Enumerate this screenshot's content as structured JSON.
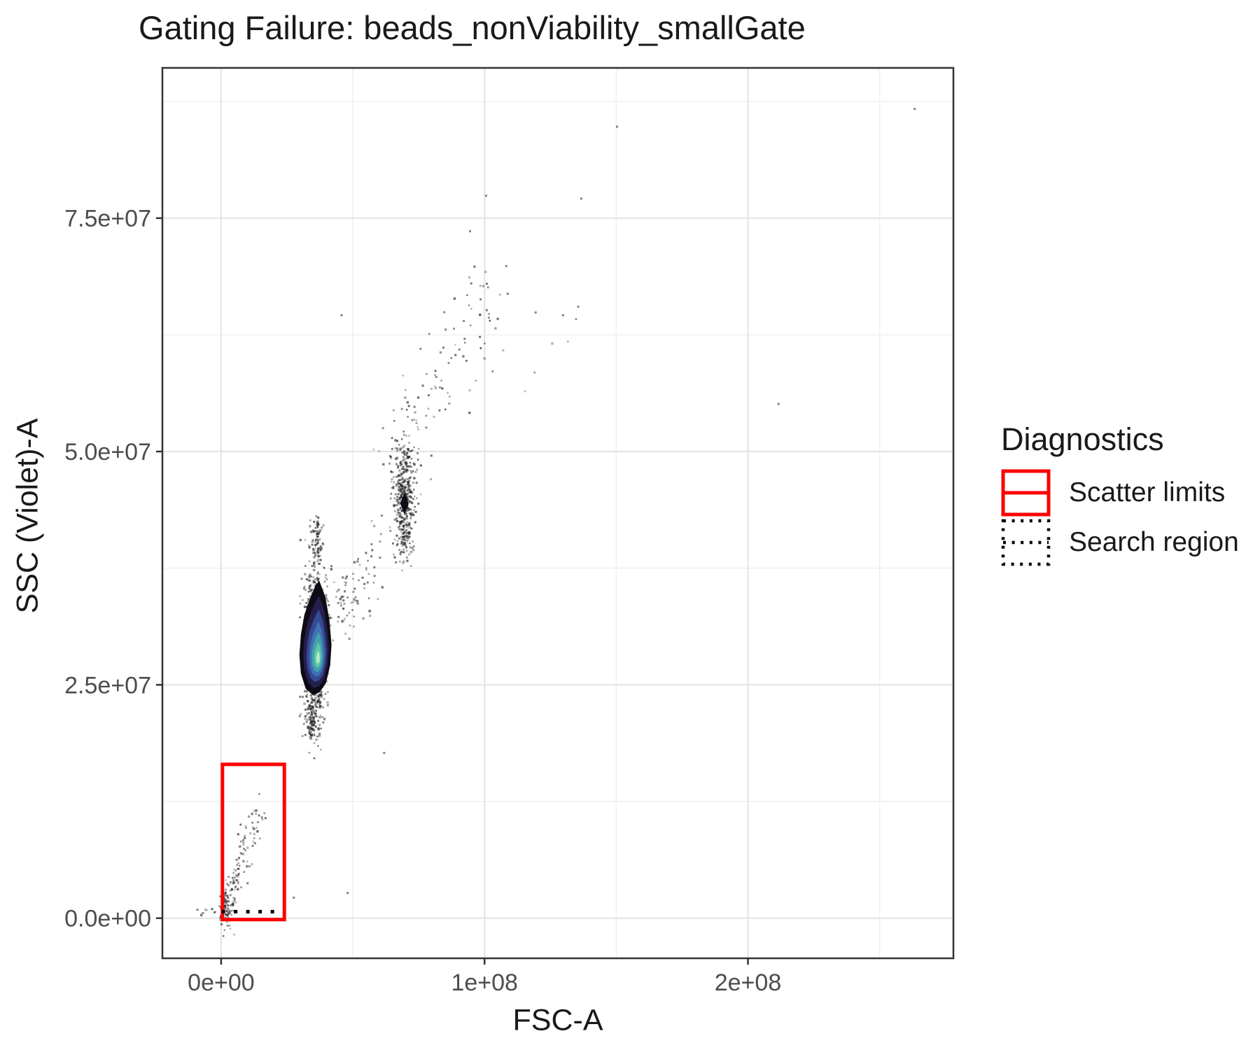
{
  "chart_data": {
    "type": "scatter",
    "title": "Gating Failure: beads_nonViability_smallGate",
    "xlabel": "FSC-A",
    "ylabel": "SSC (Violet)-A",
    "xlim": [
      -22300000.0,
      278000000.0
    ],
    "ylim": [
      -4300000.0,
      91100000.0
    ],
    "grid": true,
    "x_ticks": [
      {
        "v": 0,
        "label": "0e+00"
      },
      {
        "v": 100000000.0,
        "label": "1e+08"
      },
      {
        "v": 200000000.0,
        "label": "2e+08"
      }
    ],
    "x_minor": [
      50000000.0,
      150000000.0,
      250000000.0
    ],
    "y_ticks": [
      {
        "v": 0,
        "label": "0.0e+00"
      },
      {
        "v": 25000000.0,
        "label": "2.5e+07"
      },
      {
        "v": 50000000.0,
        "label": "5.0e+07"
      },
      {
        "v": 75000000.0,
        "label": "7.5e+07"
      }
    ],
    "y_minor": [
      12500000.0,
      37500000.0,
      62500000.0,
      87500000.0
    ],
    "legend": {
      "title": "Diagnostics",
      "position": "right",
      "items": [
        {
          "label": "Scatter limits",
          "key": "solid-red-rect",
          "color": "#FF0000"
        },
        {
          "label": "Search region",
          "key": "dotted-black-rect",
          "color": "#000000"
        }
      ]
    },
    "gates": {
      "scatter_limits": {
        "x_min": 500000.0,
        "x_max": 24000000.0,
        "y_min": 0,
        "y_max": 16480000.0,
        "color": "#FF0000"
      },
      "search_region": {
        "y": 700000.0,
        "x_min": 200000.0,
        "x_max": 20500000.0,
        "style": "dotted",
        "color": "#000000"
      }
    },
    "density_contours": {
      "focus": [
        36900000.0,
        28000000.0
      ],
      "outline": [
        [
          37200000.0,
          36200000.0
        ],
        [
          39600000.0,
          34400000.0
        ],
        [
          41100000.0,
          31900000.0
        ],
        [
          41900000.0,
          29300000.0
        ],
        [
          41400000.0,
          27100000.0
        ],
        [
          39800000.0,
          25200000.0
        ],
        [
          37400000.0,
          24200000.0
        ],
        [
          34800000.0,
          23900000.0
        ],
        [
          32100000.0,
          24600000.0
        ],
        [
          30300000.0,
          26200000.0
        ],
        [
          29700000.0,
          28200000.0
        ],
        [
          30300000.0,
          30400000.0
        ],
        [
          31600000.0,
          32500000.0
        ],
        [
          33700000.0,
          34200000.0
        ],
        [
          35600000.0,
          35500000.0
        ]
      ],
      "levels": [
        {
          "scale": 1.0,
          "color": "#0d0c16"
        },
        {
          "scale": 0.8,
          "color": "#251f4e"
        },
        {
          "scale": 0.63,
          "color": "#354a92"
        },
        {
          "scale": 0.48,
          "color": "#4071b4"
        },
        {
          "scale": 0.35,
          "color": "#3fa3ad"
        },
        {
          "scale": 0.22,
          "color": "#63c8a8"
        },
        {
          "scale": 0.11,
          "color": "#b2ecc3"
        }
      ],
      "secondary_blob": [
        [
          69600000.0,
          45600000.0
        ],
        [
          71200000.0,
          44400000.0
        ],
        [
          69600000.0,
          43300000.0
        ],
        [
          68000000.0,
          44400000.0
        ]
      ],
      "secondary_color": "#0d0c16"
    },
    "clusters": [
      {
        "name": "beads-main-halo",
        "shape": "gauss",
        "cx": 35500000.0,
        "cy": 29000000.0,
        "sdx": 2000000.0,
        "sdy": 4300000.0,
        "n": 900
      },
      {
        "name": "beads-main-upper-tail",
        "shape": "gauss",
        "cx": 36200000.0,
        "cy": 40500000.0,
        "sdx": 1100000.0,
        "sdy": 1400000.0,
        "n": 80
      },
      {
        "name": "beads-main-lower-tail",
        "shape": "gauss",
        "cx": 34200000.0,
        "cy": 21000000.0,
        "sdx": 1200000.0,
        "sdy": 1200000.0,
        "n": 70
      },
      {
        "name": "bridge",
        "shape": "line",
        "x1": 41000000.0,
        "y1": 31000000.0,
        "x2": 61000000.0,
        "y2": 39500000.0,
        "nx": 2600000.0,
        "ny": 2600000.0,
        "skew": 1,
        "n": 90
      },
      {
        "name": "doublets-cluster",
        "shape": "gauss",
        "cx": 69500000.0,
        "cy": 44500000.0,
        "sdx": 2000000.0,
        "sdy": 3000000.0,
        "n": 430
      },
      {
        "name": "doublets-plume",
        "shape": "line",
        "x1": 64000000.0,
        "y1": 49000000.0,
        "x2": 101000000.0,
        "y2": 65500000.0,
        "nx": 4500000.0,
        "ny": 2600000.0,
        "skew": 1.6,
        "n": 120
      },
      {
        "name": "high-right-sparse",
        "shape": "box",
        "x0": 92000000.0,
        "x1": 136000000.0,
        "y0": 56000000.0,
        "y1": 70000000.0,
        "n": 14
      },
      {
        "name": "debris",
        "shape": "line",
        "x1": 2000000.0,
        "y1": 800000.0,
        "x2": 15000000.0,
        "y2": 12500000.0,
        "nx": 1400000.0,
        "ny": 1100000.0,
        "skew": 2.6,
        "n": 175
      },
      {
        "name": "origin-dust",
        "shape": "box",
        "x0": -9000000.0,
        "x1": 1000000.0,
        "y0": 0,
        "y1": 1200000.0,
        "n": 8
      }
    ],
    "outlier_points": [
      [
        263300000.0,
        86700000.0
      ],
      [
        150300000.0,
        84800000.0
      ],
      [
        211600000.0,
        55100000.0
      ],
      [
        136700000.0,
        77100000.0
      ],
      [
        100600000.0,
        77400000.0
      ],
      [
        94500000.0,
        73600000.0
      ],
      [
        45700000.0,
        64600000.0
      ],
      [
        119400000.0,
        64900000.0
      ],
      [
        129800000.0,
        64600000.0
      ],
      [
        108800000.0,
        66900000.0
      ],
      [
        98500000.0,
        66300000.0
      ],
      [
        61900000.0,
        17700000.0
      ],
      [
        27600000.0,
        2200000.0
      ],
      [
        48000000.0,
        2700000.0
      ],
      [
        -9000000.0,
        900000.0
      ],
      [
        -7500000.0,
        300000.0
      ]
    ],
    "style": {
      "point_color": "#1c1c1c",
      "grid_major": "#e5e5e5",
      "grid_minor": "#f0f0f0",
      "panel_border": "#333333",
      "tick_color": "#333333",
      "tick_label_color": "#4d4d4d",
      "background": "#ffffff"
    }
  }
}
